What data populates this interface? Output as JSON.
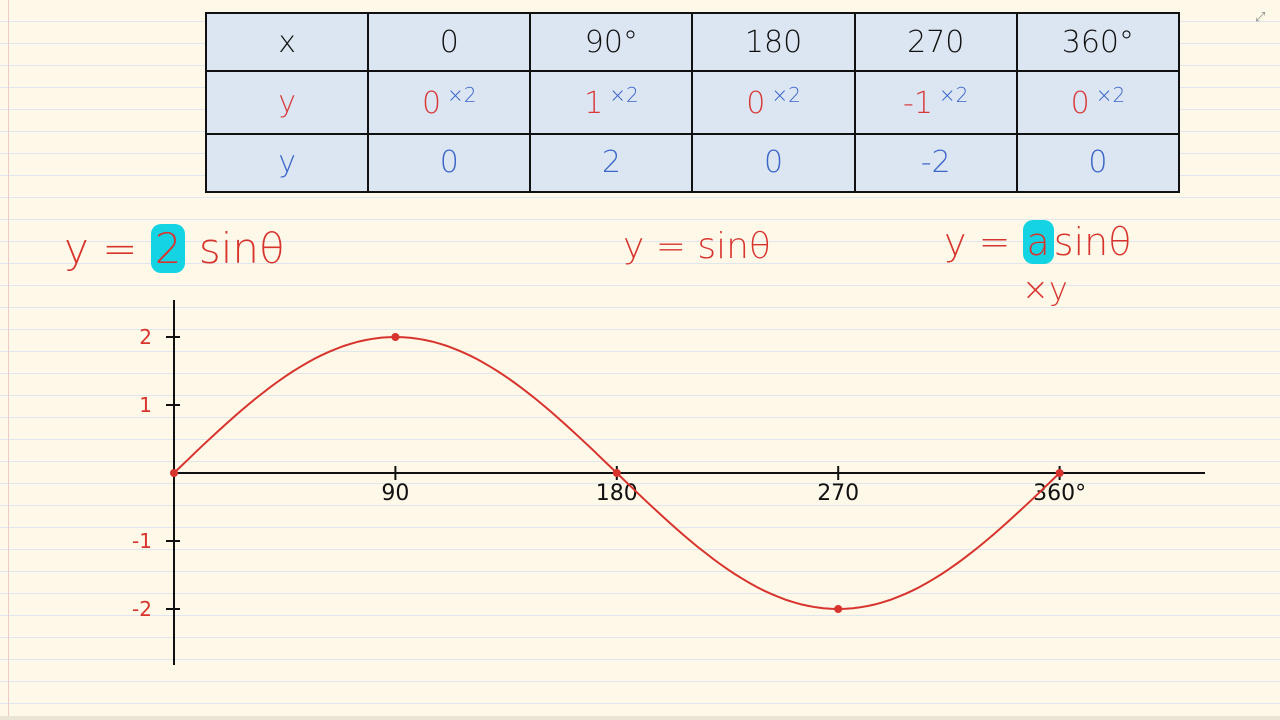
{
  "table": {
    "rows": [
      {
        "label": "x",
        "cells": [
          "0",
          "90°",
          "180",
          "270",
          "360°"
        ]
      },
      {
        "label": "y",
        "cells": [
          "0",
          "1",
          "0",
          "-1",
          "0"
        ],
        "multiplier": "×2"
      },
      {
        "label": "y",
        "cells": [
          "0",
          "2",
          "0",
          "-2",
          "0"
        ]
      }
    ]
  },
  "formulas": {
    "left": "y = 2 sinθ",
    "left_coef": "2",
    "left_rest": "sinθ",
    "left_prefix": "y = ",
    "middle": "y = sinθ",
    "right_prefix": "y = ",
    "right_coef": "a",
    "right_rest": "sinθ",
    "right_note": "×y"
  },
  "colors": {
    "pen_red": "#d8342e",
    "pen_blue": "#3b66c8",
    "highlight": "#14d4e4",
    "axis": "#111111"
  },
  "chart_data": {
    "type": "line",
    "x": [
      0,
      90,
      180,
      270,
      360
    ],
    "series": [
      {
        "values": [
          0,
          2,
          0,
          -2,
          0
        ]
      }
    ],
    "xticks": [
      "90",
      "180",
      "270",
      "360°"
    ],
    "yticks": [
      "2",
      "1",
      "-1",
      "-2"
    ],
    "xlim": [
      0,
      400
    ],
    "ylim": [
      -2.5,
      2.5
    ],
    "grid": false
  }
}
